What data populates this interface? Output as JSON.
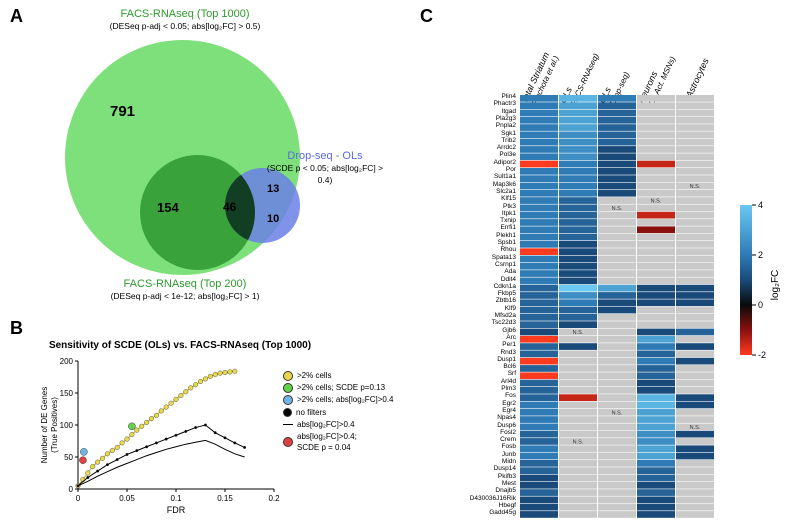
{
  "panelA": {
    "label": "A",
    "top_title_line1": "FACS-RNAseq (Top 1000)",
    "top_title_line2": "(DESeq p-adj < 0.05; abs[log₂FC] > 0.5)",
    "right_title_line1": "Drop-seq - OLs",
    "right_title_line2": "(SCDE p < 0.05; abs[log₂FC] > 0.4)",
    "bottom_title_line1": "FACS-RNAseq (Top 200)",
    "bottom_title_line2": "(DESeq p-adj < 1e-12; abs[log₂FC] > 1)",
    "counts": {
      "c791": "791",
      "c154": "154",
      "c46": "46",
      "c13": "13",
      "c10": "10"
    },
    "colors": {
      "big": "#7de07a",
      "mid": "#3aa23a",
      "small": "#6b7fe6",
      "overlap_mid": "#2d7a2d",
      "overlap_small": "#3a5a8c"
    }
  },
  "panelB": {
    "label": "B",
    "title": "Sensitivity of SCDE (OLs) vs. FACS-RNAseq (Top 1000)",
    "xlabel": "FDR",
    "ylabel": "Number of DE Genes\n(True Positives)",
    "xlim": [
      0,
      0.2
    ],
    "ylim": [
      0,
      200
    ],
    "xticks": [
      0,
      0.05,
      0.1,
      0.15,
      0.2
    ],
    "yticks": [
      0,
      50,
      100,
      150,
      200
    ],
    "series": [
      {
        "name": ">2% cells",
        "color": "#e8d84a",
        "marker": "circle",
        "x": [
          0.0,
          0.005,
          0.01,
          0.015,
          0.02,
          0.025,
          0.03,
          0.035,
          0.04,
          0.045,
          0.05,
          0.055,
          0.06,
          0.065,
          0.07,
          0.075,
          0.08,
          0.085,
          0.09,
          0.095,
          0.1,
          0.105,
          0.11,
          0.115,
          0.12,
          0.125,
          0.13,
          0.135,
          0.14,
          0.145,
          0.15,
          0.155,
          0.16
        ],
        "y": [
          5,
          15,
          25,
          35,
          42,
          48,
          55,
          60,
          65,
          72,
          78,
          85,
          92,
          98,
          104,
          110,
          115,
          122,
          128,
          134,
          140,
          146,
          152,
          158,
          163,
          168,
          172,
          176,
          179,
          181,
          182,
          183,
          184
        ]
      },
      {
        "name": ">2% cells; SCDE p=0.13",
        "color": "#62d24a",
        "marker": "circle",
        "single": true,
        "sx": 0.055,
        "sy": 98
      },
      {
        "name": ">2% cells; abs[log₂FC]>0.4",
        "color": "#6fb8e0",
        "marker": "circle",
        "single": true,
        "sx": 0.006,
        "sy": 58
      },
      {
        "name": "no filters",
        "color": "#000000",
        "marker": "dot",
        "x": [
          0.0,
          0.01,
          0.02,
          0.03,
          0.04,
          0.05,
          0.06,
          0.07,
          0.08,
          0.09,
          0.1,
          0.11,
          0.12,
          0.13,
          0.14,
          0.15,
          0.16,
          0.17
        ],
        "y": [
          5,
          18,
          28,
          38,
          46,
          54,
          60,
          66,
          72,
          78,
          84,
          90,
          96,
          100,
          88,
          80,
          72,
          65
        ]
      },
      {
        "name": "abs[log₂FC]>0.4",
        "color": "#000000",
        "marker": "line",
        "x": [
          0.0,
          0.01,
          0.02,
          0.03,
          0.04,
          0.05,
          0.06,
          0.07,
          0.08,
          0.09,
          0.1,
          0.11,
          0.12,
          0.13,
          0.14,
          0.15,
          0.16,
          0.17
        ],
        "y": [
          5,
          12,
          20,
          27,
          34,
          40,
          46,
          52,
          57,
          62,
          66,
          70,
          73,
          76,
          70,
          62,
          55,
          50
        ]
      },
      {
        "name": "abs[log₂FC]>0.4;\nSCDE p = 0.04",
        "color": "#e04040",
        "marker": "circle",
        "single": true,
        "sx": 0.005,
        "sy": 45
      }
    ]
  },
  "panelC": {
    "label": "C",
    "columns": [
      "Total Striatum\n(Piechota et al.)",
      "OLs\n(FACS-RNAseq)",
      "OLs\n(Drop-seq)",
      "Neurons\n(D1 Act. MSNs)",
      "Astrocytes"
    ],
    "genes": [
      "Plin4",
      "Phactr3",
      "Itgad",
      "Pla2g3",
      "Pnpla2",
      "Sgk1",
      "Trib2",
      "Arrdc2",
      "Pol3e",
      "Adipor2",
      "Por",
      "Sult1a1",
      "Map3k6",
      "Slc2a1",
      "Klf15",
      "Ptk3",
      "Itpk1",
      "Txnip",
      "Errfi1",
      "Plekh1",
      "Spsb1",
      "Rhou",
      "Spata13",
      "Csrnp1",
      "Ada",
      "Ddit4",
      "Cdkn1a",
      "Fkbp5",
      "Zbtb16",
      "Klf9",
      "Mfsd2a",
      "Tsc22d3",
      "Gjb6",
      "Arc",
      "Per1",
      "Rnd3",
      "Dusp1",
      "Bcl6",
      "Srf",
      "Arl4d",
      "Plm3",
      "Fos",
      "Egr2",
      "Egr4",
      "Npas4",
      "Dusp6",
      "Fosl2",
      "Crem",
      "Fosb",
      "Junb",
      "Midn",
      "Dusp14",
      "Pkifb3",
      "Mest",
      "Dnajb5",
      "D430036J16Rik",
      "Hbegf",
      "Gadd45g"
    ],
    "colorbar": {
      "min": -2,
      "max": 4,
      "label": "log₂FC",
      "stops": [
        [
          -2,
          "#ff3b1f"
        ],
        [
          -1,
          "#8a1010"
        ],
        [
          0,
          "#0a0a0a"
        ],
        [
          1,
          "#1a4a7a"
        ],
        [
          2,
          "#2f7bb5"
        ],
        [
          4,
          "#6ac8f2"
        ]
      ]
    },
    "na_color": "#c9c9c9",
    "na_text": "N.S.",
    "cells": [
      [
        2.0,
        3.5,
        2.0,
        null,
        null
      ],
      [
        2.0,
        3.0,
        1.5,
        null,
        null
      ],
      [
        2.0,
        3.0,
        1.5,
        null,
        null
      ],
      [
        2.0,
        3.0,
        1.5,
        null,
        null
      ],
      [
        2.0,
        3.0,
        1.5,
        null,
        null
      ],
      [
        2.0,
        2.5,
        1.5,
        null,
        null
      ],
      [
        2.0,
        2.5,
        1.5,
        null,
        null
      ],
      [
        2.0,
        2.5,
        1.0,
        null,
        null
      ],
      [
        2.0,
        2.5,
        1.0,
        null,
        null
      ],
      [
        -2.0,
        2.0,
        1.0,
        -1.5,
        null
      ],
      [
        2.0,
        2.0,
        1.0,
        null,
        null
      ],
      [
        2.0,
        2.0,
        1.0,
        null,
        null
      ],
      [
        2.0,
        2.0,
        1.0,
        null,
        "NA"
      ],
      [
        2.0,
        2.0,
        1.0,
        null,
        null
      ],
      [
        2.0,
        1.5,
        null,
        "NA",
        null
      ],
      [
        2.0,
        1.5,
        "NA",
        null,
        null
      ],
      [
        2.0,
        1.5,
        null,
        -1.5,
        null
      ],
      [
        2.0,
        1.5,
        null,
        null,
        null
      ],
      [
        2.0,
        1.5,
        null,
        -1.0,
        null
      ],
      [
        2.0,
        1.5,
        null,
        null,
        null
      ],
      [
        2.0,
        1.0,
        null,
        null,
        null
      ],
      [
        -2.0,
        1.0,
        null,
        null,
        null
      ],
      [
        2.0,
        1.0,
        null,
        null,
        null
      ],
      [
        2.0,
        1.0,
        null,
        null,
        null
      ],
      [
        2.0,
        1.0,
        null,
        null,
        null
      ],
      [
        2.0,
        1.0,
        null,
        null,
        null
      ],
      [
        1.5,
        4.0,
        3.0,
        1.0,
        1.0
      ],
      [
        1.5,
        2.5,
        1.5,
        1.0,
        1.0
      ],
      [
        1.5,
        2.0,
        1.0,
        1.0,
        1.0
      ],
      [
        1.5,
        1.5,
        1.0,
        null,
        null
      ],
      [
        1.5,
        1.5,
        null,
        null,
        null
      ],
      [
        1.5,
        1.0,
        null,
        null,
        null
      ],
      [
        1.0,
        "NA",
        null,
        1.0,
        1.5
      ],
      [
        -2.0,
        null,
        null,
        3.0,
        null
      ],
      [
        1.5,
        1.0,
        null,
        2.0,
        1.0
      ],
      [
        1.5,
        null,
        null,
        1.5,
        null
      ],
      [
        -2.0,
        null,
        null,
        2.0,
        1.0
      ],
      [
        1.5,
        null,
        null,
        1.5,
        null
      ],
      [
        -2.0,
        null,
        null,
        1.5,
        null
      ],
      [
        1.5,
        null,
        null,
        1.0,
        null
      ],
      [
        1.5,
        null,
        null,
        1.0,
        null
      ],
      [
        1.5,
        -1.5,
        null,
        3.5,
        1.0
      ],
      [
        2.0,
        null,
        null,
        3.5,
        1.0
      ],
      [
        2.0,
        null,
        "NA",
        3.0,
        null
      ],
      [
        2.0,
        null,
        null,
        3.0,
        null
      ],
      [
        2.0,
        null,
        null,
        3.0,
        "NA"
      ],
      [
        1.5,
        null,
        null,
        2.5,
        1.0
      ],
      [
        1.5,
        "NA",
        null,
        2.5,
        null
      ],
      [
        2.0,
        null,
        null,
        3.0,
        1.0
      ],
      [
        2.0,
        null,
        null,
        3.0,
        1.0
      ],
      [
        1.5,
        null,
        null,
        2.0,
        null
      ],
      [
        1.5,
        null,
        null,
        1.5,
        null
      ],
      [
        1.0,
        null,
        null,
        1.5,
        null
      ],
      [
        1.0,
        null,
        null,
        1.0,
        null
      ],
      [
        1.5,
        null,
        null,
        1.5,
        null
      ],
      [
        1.0,
        null,
        null,
        1.0,
        null
      ],
      [
        1.0,
        null,
        null,
        1.0,
        null
      ],
      [
        1.0,
        null,
        null,
        1.0,
        null
      ]
    ]
  }
}
